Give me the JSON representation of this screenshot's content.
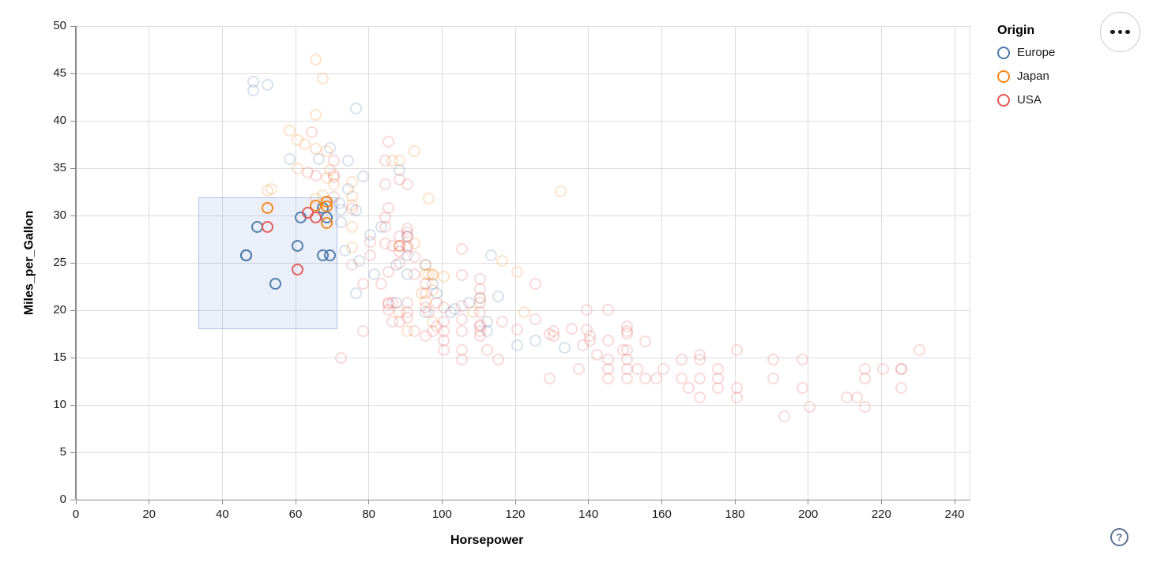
{
  "legend": {
    "title": "Origin",
    "entries": [
      {
        "label": "Europe",
        "color": "#4c78a8"
      },
      {
        "label": "Japan",
        "color": "#f58518"
      },
      {
        "label": "USA",
        "color": "#e45756"
      }
    ]
  },
  "controls": {
    "more_options_icon": "ellipsis",
    "help_label": "?"
  },
  "chart_data": {
    "type": "scatter",
    "title": "",
    "xlabel": "Horsepower",
    "ylabel": "Miles_per_Gallon",
    "xlim": [
      0,
      240
    ],
    "ylim": [
      0,
      50
    ],
    "x_ticks": [
      0,
      20,
      40,
      60,
      80,
      100,
      120,
      140,
      160,
      180,
      200,
      220,
      240
    ],
    "y_ticks": [
      0,
      5,
      10,
      15,
      20,
      25,
      30,
      35,
      40,
      45,
      50
    ],
    "grid": true,
    "legend_position": "top-right",
    "point_shape": "open-circle",
    "faded_opacity": 0.22,
    "brush_selection": {
      "x": [
        33.5,
        71
      ],
      "y": [
        18.2,
        31.9
      ]
    },
    "series": [
      {
        "name": "Europe",
        "color": "#4c78a8",
        "points": [
          [
            46,
            26
          ],
          [
            46,
            26
          ],
          [
            49,
            29
          ],
          [
            54,
            23
          ],
          [
            60,
            27
          ],
          [
            61,
            30
          ],
          [
            67,
            31
          ],
          [
            68,
            30
          ],
          [
            67,
            26
          ],
          [
            69,
            26
          ],
          [
            48,
            43.4
          ],
          [
            48,
            44.3
          ],
          [
            52,
            44
          ],
          [
            58,
            36.1
          ],
          [
            66,
            36.1
          ],
          [
            69,
            37.3
          ],
          [
            71.5,
            31.5
          ],
          [
            74,
            33
          ],
          [
            74,
            36
          ],
          [
            76,
            41.5
          ],
          [
            76,
            30.7
          ],
          [
            76,
            22
          ],
          [
            77,
            25.4
          ],
          [
            78,
            34.3
          ],
          [
            80,
            28.1
          ],
          [
            81,
            24
          ],
          [
            83,
            29
          ],
          [
            87,
            25
          ],
          [
            87,
            21
          ],
          [
            88,
            35
          ],
          [
            90,
            28
          ],
          [
            90,
            26
          ],
          [
            90,
            24
          ],
          [
            95,
            25
          ],
          [
            95,
            20
          ],
          [
            97,
            23
          ],
          [
            98,
            22
          ],
          [
            102,
            20
          ],
          [
            103,
            20.3
          ],
          [
            107,
            21
          ],
          [
            110,
            21.5
          ],
          [
            112,
            18
          ],
          [
            112,
            19
          ],
          [
            113,
            26
          ],
          [
            115,
            21.6
          ],
          [
            120,
            16.5
          ],
          [
            125,
            17
          ],
          [
            133,
            16.2
          ],
          [
            72,
            29.5
          ],
          [
            72,
            30.8
          ],
          [
            73,
            26.5
          ]
        ]
      },
      {
        "name": "Japan",
        "color": "#f58518",
        "points": [
          [
            52,
            31
          ],
          [
            65,
            31.2
          ],
          [
            68,
            31.6
          ],
          [
            68,
            31.1
          ],
          [
            68,
            29.4
          ],
          [
            52,
            32.8
          ],
          [
            53,
            33
          ],
          [
            58,
            39.1
          ],
          [
            60,
            35.1
          ],
          [
            60,
            38.1
          ],
          [
            62,
            37.7
          ],
          [
            65,
            32
          ],
          [
            65,
            37.2
          ],
          [
            65,
            40.8
          ],
          [
            65,
            46.6
          ],
          [
            67,
            44.6
          ],
          [
            67,
            32.3
          ],
          [
            68,
            34.1
          ],
          [
            68,
            37
          ],
          [
            69,
            35
          ],
          [
            70,
            33.5
          ],
          [
            75,
            31.3
          ],
          [
            75,
            33.7
          ],
          [
            75,
            29
          ],
          [
            75,
            32.2
          ],
          [
            75,
            26.8
          ],
          [
            86,
            36
          ],
          [
            88,
            27
          ],
          [
            88,
            27
          ],
          [
            88,
            20
          ],
          [
            88,
            36
          ],
          [
            90,
            18
          ],
          [
            92,
            27.2
          ],
          [
            92,
            37
          ],
          [
            94,
            22
          ],
          [
            95,
            24
          ],
          [
            95,
            25
          ],
          [
            95,
            21.1
          ],
          [
            96,
            24
          ],
          [
            96,
            32
          ],
          [
            97,
            19
          ],
          [
            97,
            24
          ],
          [
            97,
            22.3
          ],
          [
            97,
            23.9
          ],
          [
            100,
            23.7
          ],
          [
            108,
            20
          ],
          [
            110,
            21.5
          ],
          [
            116,
            25.4
          ],
          [
            120,
            24.2
          ],
          [
            122,
            20
          ],
          [
            132,
            32.7
          ]
        ]
      },
      {
        "name": "USA",
        "color": "#e45756",
        "points": [
          [
            52,
            29
          ],
          [
            60,
            24.5
          ],
          [
            63,
            30.5
          ],
          [
            65,
            30
          ],
          [
            63,
            34.7
          ],
          [
            64,
            39
          ],
          [
            65,
            34.4
          ],
          [
            70,
            34.2
          ],
          [
            70,
            34.5
          ],
          [
            70,
            36
          ],
          [
            70,
            32.1
          ],
          [
            72,
            15.1
          ],
          [
            75,
            30.9
          ],
          [
            75,
            25
          ],
          [
            78,
            18
          ],
          [
            78,
            23
          ],
          [
            80,
            26
          ],
          [
            80,
            27.4
          ],
          [
            83,
            23
          ],
          [
            84,
            29
          ],
          [
            84,
            27.2
          ],
          [
            84,
            30
          ],
          [
            84,
            33.5
          ],
          [
            84,
            36
          ],
          [
            85,
            21
          ],
          [
            85,
            20.2
          ],
          [
            85,
            20.8
          ],
          [
            85,
            24.2
          ],
          [
            85,
            31
          ],
          [
            85,
            38
          ],
          [
            86,
            21
          ],
          [
            86,
            19
          ],
          [
            86,
            27
          ],
          [
            88,
            19
          ],
          [
            88,
            25.1
          ],
          [
            88,
            28
          ],
          [
            88,
            27
          ],
          [
            88,
            34
          ],
          [
            88,
            26.4
          ],
          [
            90,
            21
          ],
          [
            90,
            20
          ],
          [
            90,
            19.4
          ],
          [
            90,
            28
          ],
          [
            90,
            27
          ],
          [
            90,
            28.8
          ],
          [
            90,
            28.4
          ],
          [
            90,
            26.8
          ],
          [
            90,
            33.5
          ],
          [
            92,
            24
          ],
          [
            92,
            25.8
          ],
          [
            92,
            18
          ],
          [
            95,
            22
          ],
          [
            95,
            23
          ],
          [
            95,
            17.5
          ],
          [
            95,
            20.5
          ],
          [
            96,
            20
          ],
          [
            97,
            18
          ],
          [
            98,
            18.5
          ],
          [
            98,
            21
          ],
          [
            100,
            19
          ],
          [
            100,
            17
          ],
          [
            100,
            16
          ],
          [
            100,
            18
          ],
          [
            100,
            20.5
          ],
          [
            105,
            16
          ],
          [
            105,
            18
          ],
          [
            105,
            15
          ],
          [
            105,
            19.2
          ],
          [
            105,
            20.6
          ],
          [
            105,
            26.6
          ],
          [
            105,
            23.9
          ],
          [
            110,
            18
          ],
          [
            110,
            20
          ],
          [
            110,
            18.5
          ],
          [
            110,
            17.5
          ],
          [
            110,
            18.6
          ],
          [
            110,
            23.5
          ],
          [
            110,
            22.4
          ],
          [
            110,
            21
          ],
          [
            112,
            16
          ],
          [
            115,
            15
          ],
          [
            116,
            19
          ],
          [
            120,
            18.1
          ],
          [
            125,
            23
          ],
          [
            125,
            19.2
          ],
          [
            129,
            13
          ],
          [
            129,
            17.6
          ],
          [
            130,
            18
          ],
          [
            130,
            17.5
          ],
          [
            135,
            18.2
          ],
          [
            137,
            14
          ],
          [
            138,
            16.5
          ],
          [
            139,
            18.1
          ],
          [
            139,
            20.2
          ],
          [
            140,
            17
          ],
          [
            140,
            17.5
          ],
          [
            142,
            15.5
          ],
          [
            145,
            15
          ],
          [
            145,
            13
          ],
          [
            145,
            14
          ],
          [
            145,
            17
          ],
          [
            145,
            20.2
          ],
          [
            149,
            16
          ],
          [
            150,
            18
          ],
          [
            150,
            16
          ],
          [
            150,
            15
          ],
          [
            150,
            14
          ],
          [
            150,
            13
          ],
          [
            150,
            18.5
          ],
          [
            150,
            17.7
          ],
          [
            153,
            14
          ],
          [
            155,
            13
          ],
          [
            155,
            16.9
          ],
          [
            158,
            13
          ],
          [
            160,
            14
          ],
          [
            165,
            15
          ],
          [
            165,
            13
          ],
          [
            167,
            12
          ],
          [
            170,
            15
          ],
          [
            170,
            11
          ],
          [
            170,
            13
          ],
          [
            170,
            15.5
          ],
          [
            175,
            14
          ],
          [
            175,
            12
          ],
          [
            175,
            13
          ],
          [
            180,
            12
          ],
          [
            180,
            11
          ],
          [
            180,
            16
          ],
          [
            190,
            15
          ],
          [
            190,
            13
          ],
          [
            193,
            9
          ],
          [
            198,
            15
          ],
          [
            198,
            12
          ],
          [
            200,
            10
          ],
          [
            210,
            11
          ],
          [
            213,
            11
          ],
          [
            215,
            14
          ],
          [
            215,
            13
          ],
          [
            215,
            10
          ],
          [
            220,
            14
          ],
          [
            225,
            14
          ],
          [
            225,
            14
          ],
          [
            225,
            12
          ],
          [
            230,
            16
          ]
        ]
      }
    ]
  }
}
